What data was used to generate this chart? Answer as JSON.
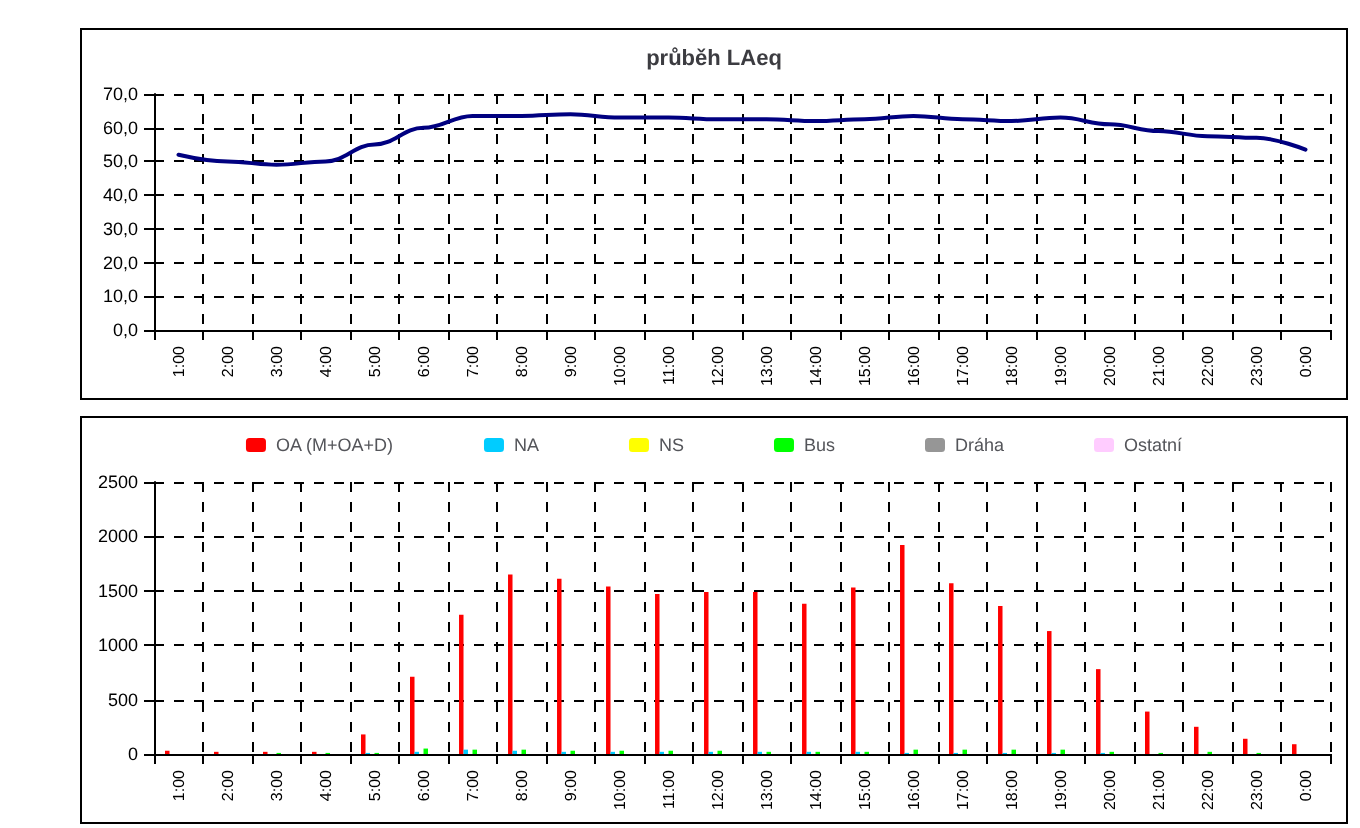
{
  "chart_data": [
    {
      "type": "line",
      "title": "průběh LAeq",
      "categories": [
        "1:00",
        "2:00",
        "3:00",
        "4:00",
        "5:00",
        "6:00",
        "7:00",
        "8:00",
        "9:00",
        "10:00",
        "11:00",
        "12:00",
        "13:00",
        "14:00",
        "15:00",
        "16:00",
        "17:00",
        "18:00",
        "19:00",
        "20:00",
        "21:00",
        "22:00",
        "23:00",
        "0:00"
      ],
      "series": [
        {
          "color": "#000080",
          "values": [
            52,
            50,
            49,
            50,
            55,
            60,
            63.5,
            63.5,
            64,
            63,
            63,
            62.5,
            62.5,
            62,
            62.5,
            63.5,
            62.5,
            62,
            63,
            61,
            59,
            57.5,
            57,
            53.5
          ]
        }
      ],
      "ylim": [
        0,
        70
      ],
      "yticks": [
        {
          "value": 0,
          "label": "0,0"
        },
        {
          "value": 10,
          "label": "10,0"
        },
        {
          "value": 20,
          "label": "20,0"
        },
        {
          "value": 30,
          "label": "30,0"
        },
        {
          "value": 40,
          "label": "40,0"
        },
        {
          "value": 50,
          "label": "50,0"
        },
        {
          "value": 60,
          "label": "60,0"
        },
        {
          "value": 70,
          "label": "70,0"
        }
      ],
      "grid": true,
      "marker": "none",
      "line_style": "solid"
    },
    {
      "type": "bar",
      "categories": [
        "1:00",
        "2:00",
        "3:00",
        "4:00",
        "5:00",
        "6:00",
        "7:00",
        "8:00",
        "9:00",
        "10:00",
        "11:00",
        "12:00",
        "13:00",
        "14:00",
        "15:00",
        "16:00",
        "17:00",
        "18:00",
        "19:00",
        "20:00",
        "21:00",
        "22:00",
        "23:00",
        "0:00"
      ],
      "series": [
        {
          "name": "OA (M+OA+D)",
          "color": "#ff0000",
          "values": [
            30,
            20,
            20,
            20,
            180,
            710,
            1280,
            1650,
            1610,
            1540,
            1470,
            1490,
            1490,
            1380,
            1530,
            1920,
            1570,
            1360,
            1130,
            780,
            390,
            250,
            140,
            90
          ]
        },
        {
          "name": "NA",
          "color": "#00ccff",
          "values": [
            0,
            0,
            0,
            0,
            10,
            20,
            40,
            30,
            20,
            20,
            20,
            20,
            20,
            20,
            20,
            10,
            10,
            10,
            10,
            10,
            0,
            0,
            0,
            0
          ]
        },
        {
          "name": "NS",
          "color": "#ffff00",
          "values": [
            0,
            0,
            0,
            0,
            0,
            0,
            0,
            0,
            0,
            0,
            0,
            0,
            0,
            0,
            0,
            0,
            0,
            0,
            0,
            0,
            0,
            0,
            0,
            0
          ]
        },
        {
          "name": "Bus",
          "color": "#00ff00",
          "values": [
            0,
            0,
            10,
            10,
            10,
            50,
            40,
            40,
            30,
            30,
            30,
            30,
            20,
            20,
            20,
            40,
            40,
            40,
            40,
            20,
            10,
            20,
            10,
            0
          ]
        },
        {
          "name": "Dráha",
          "color": "#969696",
          "values": [
            0,
            0,
            0,
            0,
            0,
            0,
            0,
            0,
            0,
            0,
            0,
            0,
            0,
            0,
            0,
            0,
            0,
            0,
            0,
            0,
            0,
            0,
            0,
            0
          ]
        },
        {
          "name": "Ostatní",
          "color": "#ffccff",
          "values": [
            0,
            0,
            0,
            0,
            0,
            0,
            0,
            0,
            0,
            0,
            0,
            0,
            0,
            0,
            0,
            0,
            0,
            0,
            0,
            0,
            0,
            0,
            0,
            0
          ]
        }
      ],
      "ylim": [
        0,
        2500
      ],
      "yticks": [
        0,
        500,
        1000,
        1500,
        2000,
        2500
      ],
      "grid": true,
      "legend": "top"
    }
  ]
}
